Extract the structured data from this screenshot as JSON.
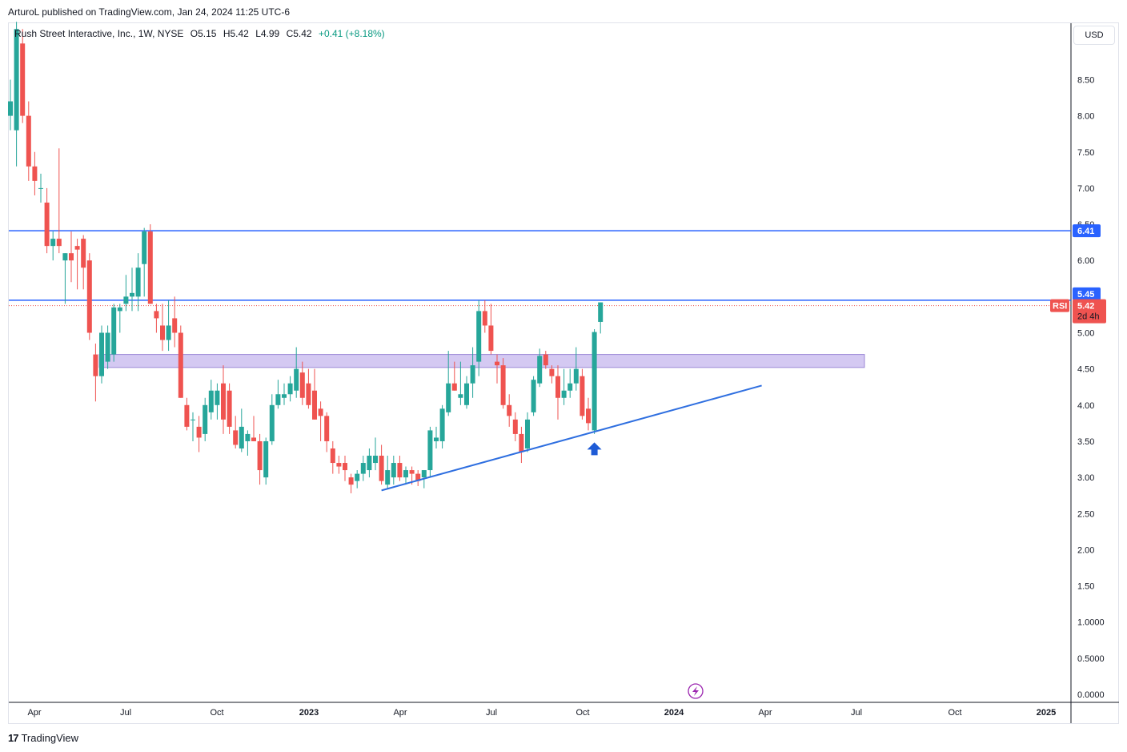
{
  "publish_line": "ArturoL published on TradingView.com, Jan 24, 2024 11:25 UTC-6",
  "legend": {
    "symbol": "Rush Street Interactive, Inc., 1W, NYSE",
    "open": "O5.15",
    "high": "H5.42",
    "low": "L4.99",
    "close": "C5.42",
    "change": "+0.41 (+8.18%)"
  },
  "currency": "USD",
  "footer": {
    "logo_mark": "17",
    "logo_text": "TradingView"
  },
  "colors": {
    "up": "#26a69a",
    "down": "#ef5350",
    "line": "#2962ff",
    "trendline": "#2f6fe0",
    "zone_fill": "#d4c9f2",
    "zone_stroke": "#9c88d6",
    "price_tag": "#ef5350",
    "level_tag": "#2962ff"
  },
  "price_tags": {
    "level_high": "6.41",
    "level_mid": "5.45",
    "last": "5.42",
    "countdown": "2d 4h",
    "rsi_label": "RSI"
  },
  "chart_data": {
    "type": "candlestick",
    "interval": "1W",
    "ylim": [
      0,
      9.25
    ],
    "y_ticks": [
      "0.0000",
      "0.5000",
      "1.0000",
      "1.50",
      "2.00",
      "2.50",
      "3.00",
      "3.50",
      "4.00",
      "4.50",
      "5.00",
      "5.50",
      "6.00",
      "6.50",
      "7.00",
      "7.50",
      "8.00",
      "8.50"
    ],
    "x_ticks": [
      "Apr",
      "Jul",
      "Oct",
      "2023",
      "Apr",
      "Jul",
      "Oct",
      "2024",
      "Apr",
      "Jul",
      "Oct",
      "2025"
    ],
    "candles": [
      {
        "o": 8.0,
        "h": 8.5,
        "l": 7.8,
        "c": 8.2
      },
      {
        "o": 7.8,
        "h": 9.3,
        "l": 7.3,
        "c": 9.2
      },
      {
        "o": 9.0,
        "h": 9.2,
        "l": 7.9,
        "c": 8.0
      },
      {
        "o": 8.0,
        "h": 8.2,
        "l": 7.1,
        "c": 7.3
      },
      {
        "o": 7.3,
        "h": 7.5,
        "l": 6.9,
        "c": 7.1
      },
      {
        "o": 7.0,
        "h": 7.2,
        "l": 6.8,
        "c": 7.0
      },
      {
        "o": 6.8,
        "h": 7.0,
        "l": 6.1,
        "c": 6.2
      },
      {
        "o": 6.2,
        "h": 6.4,
        "l": 6.0,
        "c": 6.3
      },
      {
        "o": 6.3,
        "h": 7.55,
        "l": 6.1,
        "c": 6.2
      },
      {
        "o": 6.0,
        "h": 6.1,
        "l": 5.4,
        "c": 6.1
      },
      {
        "o": 6.1,
        "h": 6.4,
        "l": 5.7,
        "c": 6.0
      },
      {
        "o": 6.2,
        "h": 6.3,
        "l": 5.6,
        "c": 6.15
      },
      {
        "o": 6.3,
        "h": 6.35,
        "l": 5.6,
        "c": 5.9
      },
      {
        "o": 6.0,
        "h": 6.1,
        "l": 4.9,
        "c": 5.0
      },
      {
        "o": 4.7,
        "h": 4.85,
        "l": 4.05,
        "c": 4.4
      },
      {
        "o": 4.4,
        "h": 5.1,
        "l": 4.3,
        "c": 5.0
      },
      {
        "o": 4.6,
        "h": 5.1,
        "l": 4.5,
        "c": 5.0
      },
      {
        "o": 4.7,
        "h": 5.4,
        "l": 4.6,
        "c": 5.35
      },
      {
        "o": 5.3,
        "h": 5.4,
        "l": 5.0,
        "c": 5.35
      },
      {
        "o": 5.4,
        "h": 5.8,
        "l": 5.3,
        "c": 5.5
      },
      {
        "o": 5.5,
        "h": 5.9,
        "l": 5.3,
        "c": 5.55
      },
      {
        "o": 5.5,
        "h": 6.1,
        "l": 5.3,
        "c": 5.9
      },
      {
        "o": 5.95,
        "h": 6.45,
        "l": 5.5,
        "c": 6.4
      },
      {
        "o": 6.4,
        "h": 6.5,
        "l": 5.4,
        "c": 5.4
      },
      {
        "o": 5.3,
        "h": 5.4,
        "l": 5.0,
        "c": 5.2
      },
      {
        "o": 5.1,
        "h": 5.4,
        "l": 4.75,
        "c": 4.9
      },
      {
        "o": 4.9,
        "h": 5.45,
        "l": 4.75,
        "c": 5.1
      },
      {
        "o": 5.2,
        "h": 5.5,
        "l": 4.8,
        "c": 5.0
      },
      {
        "o": 5.0,
        "h": 5.1,
        "l": 4.1,
        "c": 4.1
      },
      {
        "o": 4.0,
        "h": 4.1,
        "l": 3.65,
        "c": 3.7
      },
      {
        "o": 3.8,
        "h": 3.9,
        "l": 3.5,
        "c": 3.8
      },
      {
        "o": 3.7,
        "h": 3.85,
        "l": 3.35,
        "c": 3.55
      },
      {
        "o": 3.6,
        "h": 4.1,
        "l": 3.5,
        "c": 4.0
      },
      {
        "o": 3.9,
        "h": 4.35,
        "l": 3.8,
        "c": 4.2
      },
      {
        "o": 4.0,
        "h": 4.3,
        "l": 3.8,
        "c": 4.2
      },
      {
        "o": 4.3,
        "h": 4.55,
        "l": 3.6,
        "c": 3.8
      },
      {
        "o": 4.2,
        "h": 4.3,
        "l": 3.6,
        "c": 3.7
      },
      {
        "o": 3.65,
        "h": 3.85,
        "l": 3.4,
        "c": 3.45
      },
      {
        "o": 3.4,
        "h": 3.95,
        "l": 3.35,
        "c": 3.7
      },
      {
        "o": 3.5,
        "h": 3.65,
        "l": 3.3,
        "c": 3.6
      },
      {
        "o": 3.55,
        "h": 3.85,
        "l": 3.5,
        "c": 3.5
      },
      {
        "o": 3.5,
        "h": 3.6,
        "l": 2.9,
        "c": 3.1
      },
      {
        "o": 3.0,
        "h": 3.55,
        "l": 2.9,
        "c": 3.5
      },
      {
        "o": 3.5,
        "h": 4.15,
        "l": 3.45,
        "c": 4.0
      },
      {
        "o": 4.0,
        "h": 4.35,
        "l": 3.95,
        "c": 4.15
      },
      {
        "o": 4.1,
        "h": 4.3,
        "l": 4.0,
        "c": 4.15
      },
      {
        "o": 4.15,
        "h": 4.4,
        "l": 4.05,
        "c": 4.3
      },
      {
        "o": 4.2,
        "h": 4.8,
        "l": 4.1,
        "c": 4.5
      },
      {
        "o": 4.45,
        "h": 4.6,
        "l": 4.0,
        "c": 4.1
      },
      {
        "o": 4.3,
        "h": 4.5,
        "l": 3.95,
        "c": 4.0
      },
      {
        "o": 4.2,
        "h": 4.5,
        "l": 3.8,
        "c": 3.8
      },
      {
        "o": 3.95,
        "h": 4.05,
        "l": 3.5,
        "c": 3.85
      },
      {
        "o": 3.85,
        "h": 3.9,
        "l": 3.35,
        "c": 3.5
      },
      {
        "o": 3.4,
        "h": 3.5,
        "l": 3.05,
        "c": 3.2
      },
      {
        "o": 3.2,
        "h": 3.3,
        "l": 3.05,
        "c": 3.15
      },
      {
        "o": 3.2,
        "h": 3.3,
        "l": 2.95,
        "c": 3.1
      },
      {
        "o": 3.0,
        "h": 3.05,
        "l": 2.78,
        "c": 2.9
      },
      {
        "o": 2.95,
        "h": 3.1,
        "l": 2.85,
        "c": 3.05
      },
      {
        "o": 3.05,
        "h": 3.3,
        "l": 2.95,
        "c": 3.2
      },
      {
        "o": 3.1,
        "h": 3.4,
        "l": 3.0,
        "c": 3.3
      },
      {
        "o": 3.2,
        "h": 3.55,
        "l": 3.1,
        "c": 3.3
      },
      {
        "o": 3.3,
        "h": 3.45,
        "l": 2.9,
        "c": 2.95
      },
      {
        "o": 2.9,
        "h": 3.3,
        "l": 2.85,
        "c": 3.1
      },
      {
        "o": 3.0,
        "h": 3.3,
        "l": 2.9,
        "c": 3.2
      },
      {
        "o": 3.2,
        "h": 3.3,
        "l": 2.95,
        "c": 3.0
      },
      {
        "o": 3.0,
        "h": 3.15,
        "l": 2.9,
        "c": 3.1
      },
      {
        "o": 3.1,
        "h": 3.15,
        "l": 2.9,
        "c": 3.05
      },
      {
        "o": 3.05,
        "h": 3.1,
        "l": 2.88,
        "c": 2.95
      },
      {
        "o": 3.0,
        "h": 3.1,
        "l": 2.85,
        "c": 3.1
      },
      {
        "o": 3.1,
        "h": 3.7,
        "l": 3.0,
        "c": 3.65
      },
      {
        "o": 3.5,
        "h": 3.7,
        "l": 3.4,
        "c": 3.55
      },
      {
        "o": 3.5,
        "h": 4.0,
        "l": 3.4,
        "c": 3.95
      },
      {
        "o": 3.9,
        "h": 4.75,
        "l": 3.85,
        "c": 4.3
      },
      {
        "o": 4.3,
        "h": 4.6,
        "l": 4.2,
        "c": 4.2
      },
      {
        "o": 4.1,
        "h": 4.6,
        "l": 4.0,
        "c": 4.15
      },
      {
        "o": 4.0,
        "h": 4.4,
        "l": 3.95,
        "c": 4.3
      },
      {
        "o": 4.3,
        "h": 4.8,
        "l": 4.1,
        "c": 4.55
      },
      {
        "o": 4.6,
        "h": 5.45,
        "l": 4.4,
        "c": 5.3
      },
      {
        "o": 5.3,
        "h": 5.45,
        "l": 5.0,
        "c": 5.1
      },
      {
        "o": 5.1,
        "h": 5.4,
        "l": 4.7,
        "c": 4.75
      },
      {
        "o": 4.6,
        "h": 4.7,
        "l": 4.3,
        "c": 4.55
      },
      {
        "o": 4.55,
        "h": 4.65,
        "l": 3.95,
        "c": 4.0
      },
      {
        "o": 4.0,
        "h": 4.15,
        "l": 3.7,
        "c": 3.85
      },
      {
        "o": 3.8,
        "h": 3.9,
        "l": 3.5,
        "c": 3.6
      },
      {
        "o": 3.6,
        "h": 3.7,
        "l": 3.2,
        "c": 3.35
      },
      {
        "o": 3.4,
        "h": 3.9,
        "l": 3.35,
        "c": 3.8
      },
      {
        "o": 3.9,
        "h": 4.4,
        "l": 3.85,
        "c": 4.35
      },
      {
        "o": 4.3,
        "h": 4.78,
        "l": 4.25,
        "c": 4.68
      },
      {
        "o": 4.7,
        "h": 4.75,
        "l": 4.5,
        "c": 4.55
      },
      {
        "o": 4.5,
        "h": 4.55,
        "l": 4.3,
        "c": 4.4
      },
      {
        "o": 4.4,
        "h": 4.55,
        "l": 3.8,
        "c": 4.1
      },
      {
        "o": 4.1,
        "h": 4.5,
        "l": 4.0,
        "c": 4.2
      },
      {
        "o": 4.2,
        "h": 4.5,
        "l": 4.1,
        "c": 4.3
      },
      {
        "o": 4.3,
        "h": 4.8,
        "l": 4.2,
        "c": 4.5
      },
      {
        "o": 4.4,
        "h": 4.5,
        "l": 3.8,
        "c": 3.85
      },
      {
        "o": 3.95,
        "h": 4.1,
        "l": 3.65,
        "c": 3.75
      },
      {
        "o": 3.65,
        "h": 5.05,
        "l": 3.6,
        "c": 5.01
      },
      {
        "o": 5.15,
        "h": 5.42,
        "l": 4.99,
        "c": 5.42
      }
    ],
    "horizontal_levels": [
      6.41,
      5.45
    ],
    "support_zone": {
      "low": 4.52,
      "high": 4.7
    },
    "trendline": {
      "start_candle": 61,
      "start_price": 2.82,
      "end_candle": 123.5,
      "end_price": 4.27
    },
    "arrow": {
      "candle": 96,
      "price": 3.55
    },
    "last_price": 5.42
  }
}
